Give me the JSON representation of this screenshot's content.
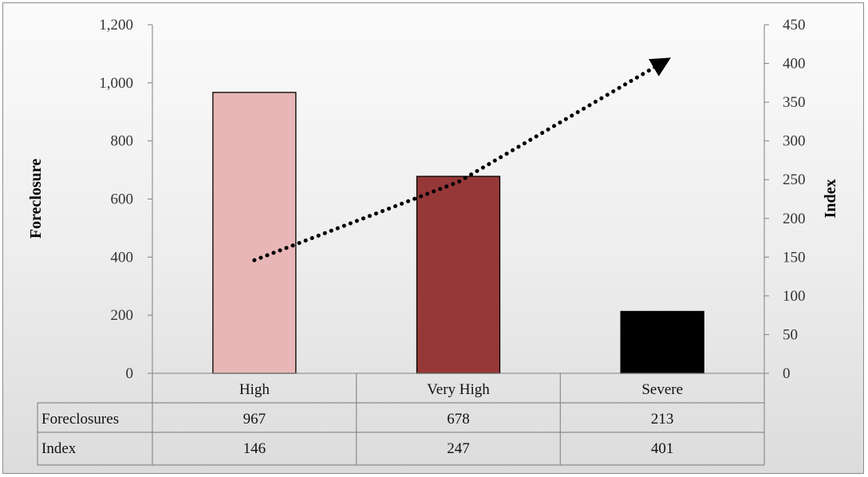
{
  "chart_data": {
    "type": "bar",
    "categories": [
      "High",
      "Very High",
      "Severe"
    ],
    "series": [
      {
        "name": "Foreclosures",
        "values": [
          967,
          678,
          213
        ],
        "axis": "left",
        "colors": [
          "#e8b6b6",
          "#963838",
          "#000000"
        ]
      },
      {
        "name": "Index",
        "values": [
          146,
          247,
          401
        ],
        "axis": "right",
        "style": "dotted-line-with-arrow",
        "color": "#000000"
      }
    ],
    "ylabel": "Foreclosure",
    "y2label": "Index",
    "ylim": [
      0,
      1200
    ],
    "y2lim": [
      0,
      450
    ],
    "yticks": [
      "0",
      "200",
      "400",
      "600",
      "800",
      "1,000",
      "1,200"
    ],
    "y2ticks": [
      "0",
      "50",
      "100",
      "150",
      "200",
      "250",
      "300",
      "350",
      "400",
      "450"
    ],
    "data_table": {
      "rows": [
        {
          "label": "Foreclosures",
          "values": [
            "967",
            "678",
            "213"
          ]
        },
        {
          "label": "Index",
          "values": [
            "146",
            "247",
            "401"
          ]
        }
      ]
    },
    "grid": false,
    "legend": "none"
  }
}
